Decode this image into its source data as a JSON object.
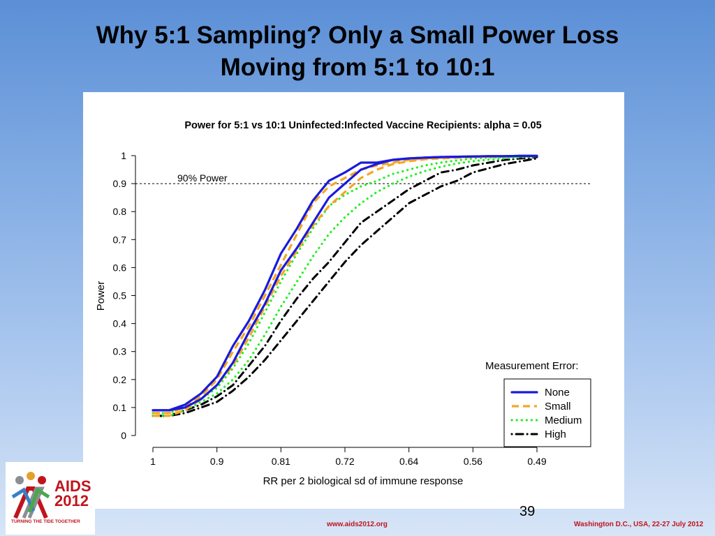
{
  "slide": {
    "title_line1": "Why 5:1 Sampling?  Only a Small Power Loss",
    "title_line2": "Moving from 5:1 to 10:1",
    "page_number": "39",
    "footer_url": "www.aids2012.org",
    "footer_event": "Washington D.C., USA, 22-27 July 2012",
    "logo": {
      "line1": "AIDS",
      "line2": "2012",
      "tagline": "TURNING THE TIDE TOGETHER"
    }
  },
  "colors": {
    "none": "#1a1adc",
    "small": "#f5a623",
    "medium": "#22ee22",
    "high": "#000000",
    "accent_red": "#c0141c"
  },
  "chart_data": {
    "type": "line",
    "title": "Power for 5:1 vs 10:1 Uninfected:Infected Vaccine Recipients: alpha = 0.05",
    "xlabel": "RR per 2 biological sd of immune response",
    "ylabel": "Power",
    "x_ticks": [
      "1",
      "0.9",
      "0.81",
      "0.72",
      "0.64",
      "0.56",
      "0.49"
    ],
    "y_ticks": [
      "0",
      "0.1",
      "0.2",
      "0.3",
      "0.4",
      "0.5",
      "0.6",
      "0.7",
      "0.8",
      "0.9",
      "1"
    ],
    "ylim": [
      0,
      1
    ],
    "reference_line": {
      "y": 0.9,
      "label": "90% Power"
    },
    "legend": {
      "title": "Measurement Error:",
      "position": "bottom-right",
      "entries": [
        {
          "label": "None",
          "key": "none",
          "dash": "solid"
        },
        {
          "label": "Small",
          "key": "small",
          "dash": "dashed"
        },
        {
          "label": "Medium",
          "key": "medium",
          "dash": "dotted"
        },
        {
          "label": "High",
          "key": "high",
          "dash": "dotdash"
        }
      ]
    },
    "x_index": [
      0,
      0.25,
      0.5,
      0.75,
      1,
      1.25,
      1.5,
      1.75,
      2,
      2.25,
      2.5,
      2.75,
      3,
      3.25,
      3.5,
      3.75,
      4,
      4.25,
      4.5,
      4.75,
      5,
      5.25,
      5.5,
      5.75,
      6
    ],
    "series": [
      {
        "key": "none",
        "ratio": "10:1",
        "values": [
          0.09,
          0.09,
          0.11,
          0.15,
          0.21,
          0.32,
          0.41,
          0.52,
          0.65,
          0.74,
          0.84,
          0.91,
          0.94,
          0.975,
          0.975,
          0.985,
          0.99,
          0.993,
          0.995,
          0.996,
          0.997,
          0.998,
          0.998,
          0.999,
          0.999
        ]
      },
      {
        "key": "none",
        "ratio": "5:1",
        "values": [
          0.09,
          0.09,
          0.1,
          0.13,
          0.18,
          0.26,
          0.37,
          0.47,
          0.59,
          0.67,
          0.76,
          0.85,
          0.9,
          0.95,
          0.97,
          0.985,
          0.99,
          0.993,
          0.995,
          0.996,
          0.997,
          0.998,
          0.998,
          0.999,
          0.999
        ]
      },
      {
        "key": "small",
        "ratio": "10:1",
        "values": [
          0.08,
          0.08,
          0.1,
          0.14,
          0.2,
          0.3,
          0.39,
          0.5,
          0.61,
          0.72,
          0.83,
          0.89,
          0.92,
          0.95,
          0.965,
          0.975,
          0.985,
          0.99,
          0.993,
          0.995,
          0.996,
          0.997,
          0.998,
          0.999,
          0.999
        ]
      },
      {
        "key": "small",
        "ratio": "5:1",
        "values": [
          0.07,
          0.07,
          0.09,
          0.13,
          0.18,
          0.25,
          0.35,
          0.46,
          0.57,
          0.66,
          0.75,
          0.82,
          0.87,
          0.92,
          0.95,
          0.97,
          0.98,
          0.987,
          0.99,
          0.993,
          0.995,
          0.996,
          0.997,
          0.998,
          0.999
        ]
      },
      {
        "key": "medium",
        "ratio": "10:1",
        "values": [
          0.08,
          0.08,
          0.1,
          0.13,
          0.17,
          0.24,
          0.33,
          0.44,
          0.55,
          0.65,
          0.74,
          0.82,
          0.86,
          0.89,
          0.91,
          0.935,
          0.95,
          0.965,
          0.975,
          0.983,
          0.99,
          0.993,
          0.995,
          0.997,
          0.998
        ]
      },
      {
        "key": "medium",
        "ratio": "5:1",
        "values": [
          0.07,
          0.07,
          0.09,
          0.12,
          0.15,
          0.2,
          0.27,
          0.36,
          0.46,
          0.55,
          0.64,
          0.72,
          0.78,
          0.83,
          0.87,
          0.9,
          0.925,
          0.945,
          0.96,
          0.972,
          0.98,
          0.986,
          0.99,
          0.994,
          0.997
        ]
      },
      {
        "key": "high",
        "ratio": "10:1",
        "values": [
          0.07,
          0.07,
          0.09,
          0.11,
          0.14,
          0.18,
          0.25,
          0.32,
          0.41,
          0.49,
          0.56,
          0.62,
          0.69,
          0.76,
          0.8,
          0.84,
          0.88,
          0.91,
          0.94,
          0.95,
          0.965,
          0.975,
          0.985,
          0.99,
          0.995
        ]
      },
      {
        "key": "high",
        "ratio": "5:1",
        "values": [
          0.07,
          0.07,
          0.08,
          0.1,
          0.12,
          0.16,
          0.21,
          0.27,
          0.34,
          0.41,
          0.48,
          0.55,
          0.62,
          0.68,
          0.73,
          0.78,
          0.83,
          0.86,
          0.89,
          0.91,
          0.94,
          0.955,
          0.97,
          0.98,
          0.99
        ]
      }
    ]
  }
}
